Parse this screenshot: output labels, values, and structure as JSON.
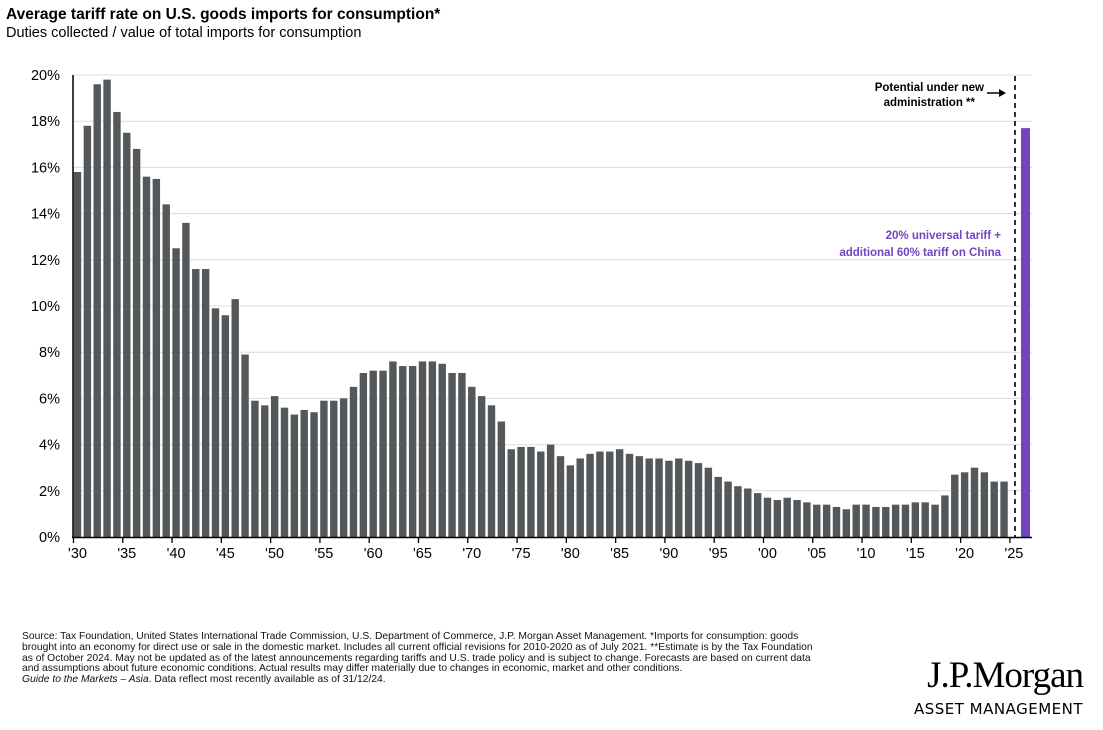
{
  "header": {
    "title": "Average tariff rate on U.S. goods imports for consumption*",
    "subtitle": "Duties collected / value of total imports for consumption"
  },
  "chart_data": {
    "type": "bar",
    "title": "Average tariff rate on U.S. goods imports for consumption*",
    "subtitle": "Duties collected / value of total imports for consumption",
    "xlabel": "",
    "ylabel": "",
    "ylim": [
      0,
      20
    ],
    "yticks": [
      "0%",
      "2%",
      "4%",
      "6%",
      "8%",
      "10%",
      "12%",
      "14%",
      "16%",
      "18%",
      "20%"
    ],
    "xticks": [
      "'30",
      "'35",
      "'40",
      "'45",
      "'50",
      "'55",
      "'60",
      "'65",
      "'70",
      "'75",
      "'80",
      "'85",
      "'90",
      "'95",
      "'00",
      "'05",
      "'10",
      "'15",
      "'20",
      "'25"
    ],
    "grid": true,
    "start_year": 1930,
    "series": [
      {
        "name": "Average tariff rate (%)",
        "color": "#54585a",
        "values": [
          15.8,
          17.8,
          19.6,
          19.8,
          18.4,
          17.5,
          16.8,
          15.6,
          15.5,
          14.4,
          12.5,
          13.6,
          11.6,
          11.6,
          9.9,
          9.6,
          10.3,
          7.9,
          5.9,
          5.7,
          6.1,
          5.6,
          5.3,
          5.5,
          5.4,
          5.9,
          5.9,
          6.0,
          6.5,
          7.1,
          7.2,
          7.2,
          7.6,
          7.4,
          7.4,
          7.6,
          7.6,
          7.5,
          7.1,
          7.1,
          6.5,
          6.1,
          5.7,
          5.0,
          3.8,
          3.9,
          3.9,
          3.7,
          4.0,
          3.5,
          3.1,
          3.4,
          3.6,
          3.7,
          3.7,
          3.8,
          3.6,
          3.5,
          3.4,
          3.4,
          3.3,
          3.4,
          3.3,
          3.2,
          3.0,
          2.6,
          2.4,
          2.2,
          2.1,
          1.9,
          1.7,
          1.6,
          1.7,
          1.6,
          1.5,
          1.4,
          1.4,
          1.3,
          1.2,
          1.4,
          1.4,
          1.3,
          1.3,
          1.4,
          1.4,
          1.5,
          1.5,
          1.4,
          1.8,
          2.7,
          2.8,
          3.0,
          2.8,
          2.4,
          2.4
        ]
      },
      {
        "name": "Potential under new administration",
        "color": "#7145c2",
        "values": [
          17.7
        ]
      }
    ],
    "annotations": {
      "potential_line1": "Potential under new",
      "potential_line2": "administration **",
      "scenario_line1": "20% universal tariff +",
      "scenario_line2": "additional 60% tariff on China"
    }
  },
  "footnote": {
    "lines": [
      "Source: Tax Foundation, United States International Trade Commission, U.S. Department of Commerce, J.P. Morgan Asset Management. *Imports for consumption: goods",
      "brought into an economy for direct use or sale in the domestic market. Includes all current official revisions for 2010-2020 as of July 2021. **Estimate is by the Tax Foundation",
      "as of October 2024. May not be updated as of the latest announcements regarding tariffs and U.S. trade policy and is subject to change. Forecasts are based on current data",
      "and assumptions about future economic conditions. Actual results may differ materially due to changes in economic, market and other conditions."
    ],
    "guide_italic": "Guide to the Markets – Asia",
    "guide_rest": ". Data reflect most recently available as of 31/12/24."
  },
  "logo": {
    "name": "J.P.Morgan",
    "tagline": "ASSET MANAGEMENT"
  }
}
